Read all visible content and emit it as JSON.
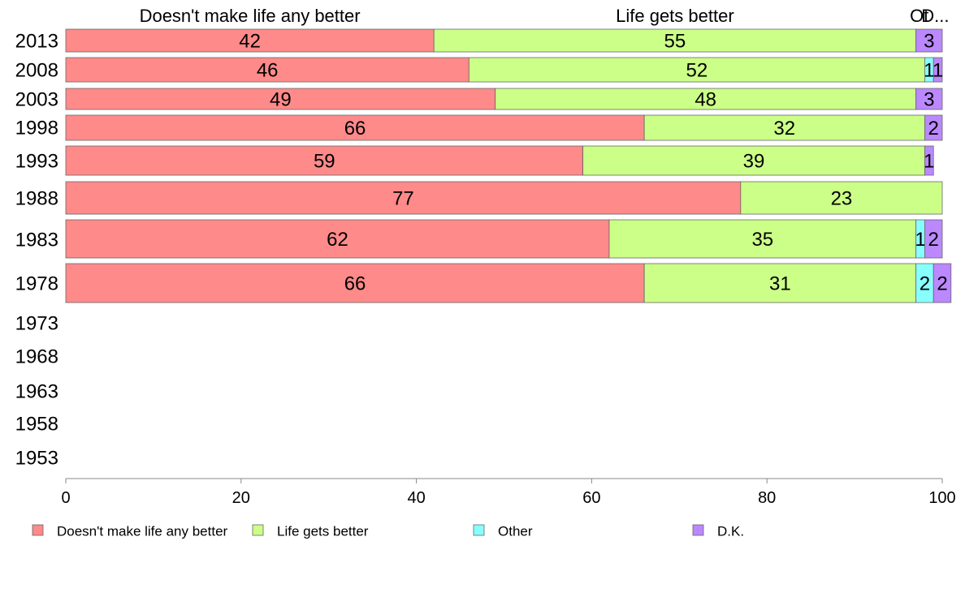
{
  "chart_data": {
    "type": "bar",
    "orientation": "horizontal",
    "stacked": true,
    "categories": [
      "2013",
      "2008",
      "2003",
      "1998",
      "1993",
      "1988",
      "1983",
      "1978",
      "1973",
      "1968",
      "1963",
      "1958",
      "1953"
    ],
    "series": [
      {
        "name": "Doesn't make life any better",
        "color": "#ff8a8a",
        "values": [
          42,
          46,
          49,
          66,
          59,
          77,
          62,
          66,
          null,
          null,
          null,
          null,
          null
        ]
      },
      {
        "name": "Life gets better",
        "color": "#ccff88",
        "values": [
          55,
          52,
          48,
          32,
          39,
          23,
          35,
          31,
          null,
          null,
          null,
          null,
          null
        ]
      },
      {
        "name": "Other",
        "color": "#88ffff",
        "values": [
          0,
          1,
          0,
          0,
          0,
          0,
          1,
          2,
          null,
          null,
          null,
          null,
          null
        ]
      },
      {
        "name": "D.K.",
        "color": "#bb88ff",
        "values": [
          3,
          1,
          3,
          2,
          1,
          0,
          2,
          2,
          null,
          null,
          null,
          null,
          null
        ]
      }
    ],
    "column_headers": [
      "Doesn't make life any better",
      "Life gets better",
      "Ot",
      "D..."
    ],
    "xlim": [
      0,
      100
    ],
    "x_ticks": [
      "0",
      "20",
      "40",
      "60",
      "80",
      "100"
    ],
    "grid": false,
    "legend_position": "bottom"
  }
}
